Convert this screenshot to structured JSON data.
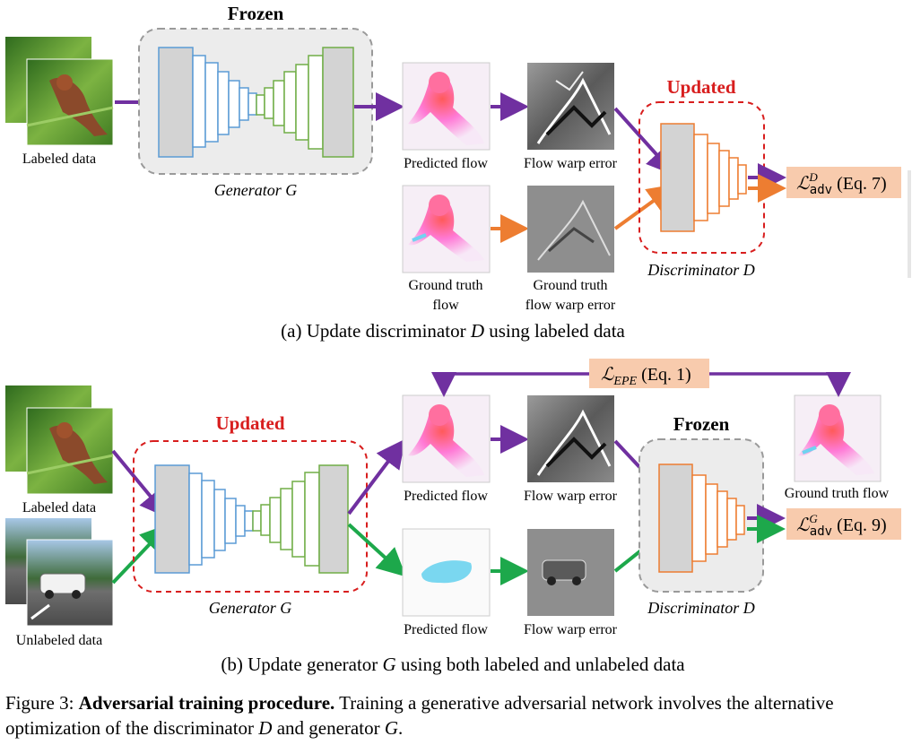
{
  "colors": {
    "purple": "#7030A0",
    "green": "#1DA84B",
    "orange": "#ED7D31",
    "red": "#D81E1E",
    "gen_blue": "#5B9BD5",
    "gen_green": "#70AD47",
    "loss_bg": "#F8CBAD",
    "frozen_bg": "#ECECEC",
    "frozen_border": "#9A9A9A"
  },
  "panel_a": {
    "status_label": "Frozen",
    "disc_status": "Updated",
    "labeled_caption": "Labeled data",
    "generator_label": "Generator G",
    "pred_flow_caption": "Predicted flow",
    "warp_caption": "Flow warp error",
    "gt_flow_caption_1": "Ground truth",
    "gt_flow_caption_2": "flow",
    "gt_warp_caption_1": "Ground truth",
    "gt_warp_caption_2": "flow warp error",
    "disc_label": "Discriminator D",
    "loss_main": "ℒ",
    "loss_sup": "D",
    "loss_sub": "adv",
    "loss_eq": " (Eq. 7)",
    "subcaption_pre": "(a) Update discriminator ",
    "subcaption_var": "D",
    "subcaption_post": " using labeled data"
  },
  "panel_b": {
    "gen_status": "Updated",
    "disc_status": "Frozen",
    "labeled_caption": "Labeled data",
    "unlabeled_caption": "Unlabeled data",
    "generator_label": "Generator G",
    "pred_flow_caption": "Predicted flow",
    "warp_caption": "Flow warp error",
    "pred_flow_caption_2": "Predicted flow",
    "warp_caption_2": "Flow warp error",
    "gt_flow_caption": "Ground truth flow",
    "disc_label": "Discriminator D",
    "epe_main": "ℒ",
    "epe_sub": "EPE",
    "epe_eq": " (Eq. 1)",
    "loss_main": "ℒ",
    "loss_sup": "G",
    "loss_sub": "adv",
    "loss_eq": " (Eq. 9)",
    "subcaption_pre": "(b) Update generator ",
    "subcaption_var": "G",
    "subcaption_post": " using both labeled and unlabeled data"
  },
  "caption": {
    "prefix": "Figure 3:  ",
    "bold": "Adversarial training procedure.",
    "rest_1": " Training a generative adversarial network involves the alternative optimization of the discriminator ",
    "var_d": "D",
    "rest_2": " and generator ",
    "var_g": "G",
    "rest_3": "."
  }
}
